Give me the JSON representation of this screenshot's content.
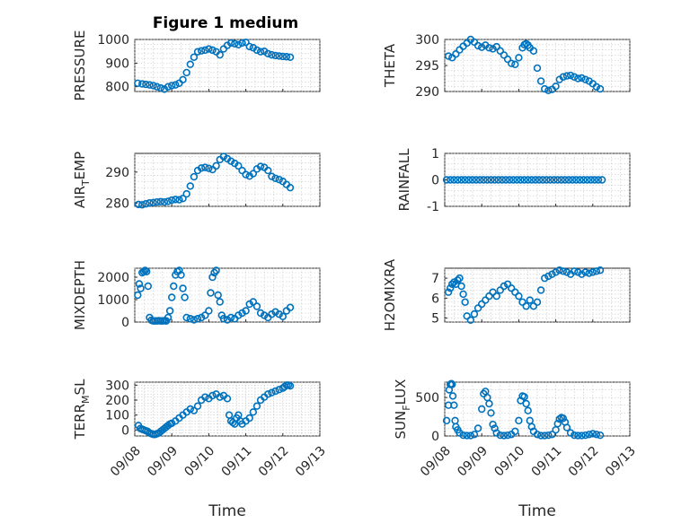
{
  "figure": {
    "title": "Figure 1 medium"
  },
  "colors": {
    "marker": "#0072BD"
  },
  "chart_data": [
    {
      "id": "pressure",
      "type": "scatter",
      "title": "Figure 1 medium",
      "ylabel": "PRESSURE",
      "xlabel": "",
      "ylim": [
        780,
        1000
      ],
      "yticks": [
        800,
        900,
        1000
      ],
      "xlim_days": [
        8,
        13
      ],
      "xtick_labels": [],
      "grid": true,
      "series": [
        {
          "x_days": [
            8.08,
            8.2,
            8.3,
            8.4,
            8.5,
            8.6,
            8.7,
            8.8,
            8.9,
            9.0,
            9.1,
            9.2,
            9.3,
            9.4,
            9.5,
            9.6,
            9.7,
            9.8,
            9.9,
            10.0,
            10.1,
            10.2,
            10.3,
            10.4,
            10.5,
            10.6,
            10.7,
            10.8,
            10.9,
            11.0,
            11.1,
            11.2,
            11.3,
            11.4,
            11.5,
            11.6,
            11.7,
            11.8,
            11.9,
            12.0,
            12.1,
            12.2
          ],
          "y": [
            815,
            812,
            810,
            808,
            805,
            800,
            795,
            790,
            800,
            805,
            808,
            815,
            830,
            860,
            895,
            925,
            948,
            952,
            955,
            960,
            955,
            948,
            935,
            960,
            975,
            985,
            982,
            978,
            985,
            988,
            970,
            965,
            955,
            948,
            950,
            940,
            935,
            932,
            930,
            928,
            927,
            925
          ]
        }
      ]
    },
    {
      "id": "theta",
      "type": "scatter",
      "ylabel": "THETA",
      "xlabel": "",
      "ylim": [
        290,
        300
      ],
      "yticks": [
        290,
        295,
        300
      ],
      "xlim_days": [
        8,
        13
      ],
      "xtick_labels": [],
      "grid": true,
      "series": [
        {
          "x_days": [
            8.1,
            8.2,
            8.3,
            8.4,
            8.5,
            8.6,
            8.7,
            8.8,
            8.9,
            9.0,
            9.1,
            9.2,
            9.3,
            9.4,
            9.5,
            9.6,
            9.7,
            9.8,
            9.9,
            10.0,
            10.1,
            10.15,
            10.2,
            10.25,
            10.3,
            10.4,
            10.5,
            10.6,
            10.7,
            10.8,
            10.9,
            11.0,
            11.1,
            11.2,
            11.3,
            11.4,
            11.5,
            11.6,
            11.7,
            11.8,
            11.9,
            12.0,
            12.1,
            12.2
          ],
          "y": [
            296.8,
            296.5,
            297.2,
            298,
            298.7,
            299.3,
            300,
            299.5,
            298.8,
            298.5,
            298.9,
            298.4,
            298.2,
            298.6,
            297.8,
            297,
            296.2,
            295.4,
            295.2,
            296.5,
            298.4,
            299,
            299.2,
            298.9,
            298.4,
            297.8,
            294.5,
            292,
            290.5,
            290.2,
            290.4,
            291,
            292.3,
            292.8,
            293,
            293.1,
            292.8,
            292.5,
            292.6,
            292.3,
            292,
            291.5,
            290.9,
            290.5
          ]
        }
      ]
    },
    {
      "id": "air_temp",
      "type": "scatter",
      "ylabel": "AIR_TEMP",
      "xlabel": "",
      "ylim": [
        279,
        296
      ],
      "yticks": [
        280,
        290
      ],
      "xlim_days": [
        8,
        13
      ],
      "xtick_labels": [],
      "grid": true,
      "series": [
        {
          "x_days": [
            8.1,
            8.2,
            8.3,
            8.4,
            8.5,
            8.6,
            8.7,
            8.8,
            8.9,
            9.0,
            9.1,
            9.2,
            9.3,
            9.4,
            9.5,
            9.6,
            9.7,
            9.8,
            9.9,
            10.0,
            10.1,
            10.2,
            10.3,
            10.4,
            10.5,
            10.6,
            10.7,
            10.8,
            10.9,
            11.0,
            11.1,
            11.2,
            11.3,
            11.4,
            11.5,
            11.6,
            11.7,
            11.8,
            11.9,
            12.0,
            12.1,
            12.2
          ],
          "y": [
            279.6,
            279.5,
            279.8,
            280.1,
            280.2,
            280.4,
            280.5,
            280.4,
            280.6,
            281,
            281.2,
            281.1,
            281.5,
            283,
            285.5,
            288.5,
            290.5,
            291.3,
            291.5,
            291.2,
            290.8,
            292,
            294,
            295,
            294.3,
            293.5,
            292.8,
            292,
            290.5,
            289.2,
            288.7,
            289.5,
            291,
            291.8,
            291.5,
            290.5,
            288.6,
            288,
            287.6,
            287,
            286,
            285
          ]
        }
      ]
    },
    {
      "id": "rainfall",
      "type": "scatter",
      "ylabel": "RAINFALL",
      "xlabel": "",
      "ylim": [
        -1,
        1
      ],
      "yticks": [
        -1,
        0,
        1
      ],
      "xlim_days": [
        8,
        13
      ],
      "xtick_labels": [],
      "grid": true,
      "series": [
        {
          "x_days": [
            8.05,
            8.15,
            8.25,
            8.35,
            8.45,
            8.55,
            8.65,
            8.75,
            8.85,
            8.95,
            9.05,
            9.15,
            9.25,
            9.35,
            9.45,
            9.55,
            9.65,
            9.75,
            9.85,
            9.95,
            10.05,
            10.15,
            10.25,
            10.35,
            10.45,
            10.55,
            10.65,
            10.75,
            10.85,
            10.95,
            11.05,
            11.15,
            11.25,
            11.35,
            11.45,
            11.55,
            11.65,
            11.75,
            11.85,
            11.95,
            12.05,
            12.15,
            12.25
          ],
          "y": [
            0,
            0,
            0,
            0,
            0,
            0,
            0,
            0,
            0,
            0,
            0,
            0,
            0,
            0,
            0,
            0,
            0,
            0,
            0,
            0,
            0,
            0,
            0,
            0,
            0,
            0,
            0,
            0,
            0,
            0,
            0,
            0,
            0,
            0,
            0,
            0,
            0,
            0,
            0,
            0,
            0,
            0,
            0
          ]
        }
      ]
    },
    {
      "id": "mixdepth",
      "type": "scatter",
      "ylabel": "MIXDEPTH",
      "xlabel": "",
      "ylim": [
        0,
        2400
      ],
      "yticks": [
        0,
        1000,
        2000
      ],
      "xlim_days": [
        8,
        13
      ],
      "xtick_labels": [],
      "grid": true,
      "series": [
        {
          "x_days": [
            8.08,
            8.12,
            8.16,
            8.2,
            8.24,
            8.28,
            8.32,
            8.36,
            8.4,
            8.45,
            8.5,
            8.55,
            8.6,
            8.65,
            8.7,
            8.75,
            8.8,
            8.85,
            8.9,
            8.95,
            9.0,
            9.05,
            9.1,
            9.15,
            9.2,
            9.25,
            9.3,
            9.35,
            9.4,
            9.5,
            9.6,
            9.7,
            9.8,
            9.9,
            10.0,
            10.05,
            10.1,
            10.15,
            10.2,
            10.25,
            10.3,
            10.35,
            10.4,
            10.5,
            10.6,
            10.7,
            10.8,
            10.9,
            11.0,
            11.1,
            11.2,
            11.3,
            11.4,
            11.5,
            11.6,
            11.7,
            11.8,
            11.9,
            12.0,
            12.1,
            12.2
          ],
          "y": [
            1200,
            1700,
            1500,
            2200,
            2250,
            2300,
            2250,
            1600,
            200,
            80,
            50,
            50,
            50,
            60,
            50,
            50,
            60,
            50,
            200,
            500,
            1100,
            1600,
            2100,
            2250,
            2300,
            2100,
            1500,
            1100,
            200,
            150,
            100,
            150,
            200,
            300,
            500,
            1300,
            2000,
            2200,
            2300,
            1200,
            900,
            300,
            150,
            100,
            200,
            150,
            300,
            400,
            500,
            800,
            900,
            700,
            400,
            300,
            200,
            350,
            450,
            350,
            250,
            500,
            650
          ]
        }
      ]
    },
    {
      "id": "h2omixra",
      "type": "scatter",
      "ylabel": "H2OMIXRA",
      "xlabel": "",
      "ylim": [
        4.8,
        7.5
      ],
      "yticks": [
        5,
        6,
        7
      ],
      "xlim_days": [
        8,
        13
      ],
      "xtick_labels": [],
      "grid": true,
      "series": [
        {
          "x_days": [
            8.1,
            8.15,
            8.2,
            8.25,
            8.3,
            8.35,
            8.4,
            8.45,
            8.5,
            8.55,
            8.6,
            8.7,
            8.8,
            8.9,
            9.0,
            9.1,
            9.2,
            9.3,
            9.4,
            9.5,
            9.6,
            9.7,
            9.8,
            9.9,
            10.0,
            10.1,
            10.2,
            10.3,
            10.4,
            10.5,
            10.6,
            10.7,
            10.8,
            10.9,
            11.0,
            11.1,
            11.2,
            11.3,
            11.4,
            11.5,
            11.6,
            11.7,
            11.8,
            11.9,
            12.0,
            12.1,
            12.2
          ],
          "y": [
            6.3,
            6.5,
            6.7,
            6.8,
            6.7,
            6.9,
            7.0,
            6.6,
            6.2,
            5.8,
            5.1,
            4.9,
            5.2,
            5.5,
            5.7,
            5.9,
            6.1,
            6.3,
            6.1,
            6.4,
            6.6,
            6.7,
            6.5,
            6.3,
            6.1,
            5.8,
            5.6,
            5.9,
            5.6,
            5.8,
            6.4,
            7.0,
            7.1,
            7.2,
            7.3,
            7.4,
            7.35,
            7.3,
            7.2,
            7.35,
            7.3,
            7.2,
            7.3,
            7.25,
            7.3,
            7.35,
            7.4
          ]
        }
      ]
    },
    {
      "id": "terr_msl",
      "type": "scatter",
      "ylabel": "TERR_MSL",
      "xlabel": "Time",
      "ylim": [
        -40,
        320
      ],
      "yticks": [
        0,
        100,
        200,
        300
      ],
      "xlim_days": [
        8,
        13
      ],
      "xtick_labels": [
        "09/08",
        "09/09",
        "09/10",
        "09/11",
        "09/12",
        "09/13"
      ],
      "grid": true,
      "series": [
        {
          "x_days": [
            8.1,
            8.15,
            8.2,
            8.25,
            8.3,
            8.35,
            8.4,
            8.45,
            8.5,
            8.55,
            8.6,
            8.65,
            8.7,
            8.75,
            8.8,
            8.85,
            8.9,
            8.95,
            9.0,
            9.1,
            9.2,
            9.3,
            9.4,
            9.5,
            9.6,
            9.7,
            9.8,
            9.9,
            10.0,
            10.1,
            10.2,
            10.3,
            10.4,
            10.5,
            10.55,
            10.6,
            10.65,
            10.7,
            10.75,
            10.8,
            10.85,
            10.9,
            11.0,
            11.1,
            11.2,
            11.3,
            11.4,
            11.5,
            11.6,
            11.7,
            11.8,
            11.9,
            12.0,
            12.05,
            12.1,
            12.15,
            12.2
          ],
          "y": [
            30,
            10,
            5,
            0,
            -5,
            -10,
            -20,
            -25,
            -30,
            -30,
            -25,
            -20,
            -10,
            0,
            10,
            20,
            30,
            40,
            45,
            60,
            80,
            100,
            120,
            140,
            130,
            160,
            200,
            220,
            210,
            230,
            240,
            220,
            230,
            210,
            100,
            60,
            50,
            40,
            80,
            100,
            60,
            40,
            60,
            80,
            120,
            160,
            200,
            220,
            240,
            250,
            260,
            270,
            280,
            290,
            300,
            300,
            295
          ]
        }
      ]
    },
    {
      "id": "sun_flux",
      "type": "scatter",
      "ylabel": "SUN_FLUX",
      "xlabel": "Time",
      "ylim": [
        0,
        700
      ],
      "yticks": [
        0,
        500
      ],
      "xlim_days": [
        8,
        13
      ],
      "xtick_labels": [
        "09/08",
        "09/09",
        "09/10",
        "09/11",
        "09/12",
        "09/13"
      ],
      "grid": true,
      "series": [
        {
          "x_days": [
            8.05,
            8.1,
            8.12,
            8.15,
            8.18,
            8.2,
            8.22,
            8.25,
            8.28,
            8.3,
            8.35,
            8.4,
            8.5,
            8.6,
            8.7,
            8.8,
            8.9,
            9.0,
            9.05,
            9.1,
            9.15,
            9.2,
            9.25,
            9.3,
            9.35,
            9.4,
            9.5,
            9.6,
            9.7,
            9.8,
            9.9,
            10.0,
            10.05,
            10.1,
            10.15,
            10.2,
            10.25,
            10.3,
            10.35,
            10.4,
            10.5,
            10.6,
            10.7,
            10.8,
            10.9,
            11.0,
            11.05,
            11.1,
            11.15,
            11.2,
            11.25,
            11.3,
            11.4,
            11.5,
            11.6,
            11.7,
            11.8,
            11.9,
            12.0,
            12.1,
            12.2
          ],
          "y": [
            200,
            400,
            600,
            670,
            680,
            670,
            520,
            400,
            200,
            120,
            80,
            40,
            10,
            5,
            5,
            20,
            100,
            350,
            550,
            580,
            500,
            420,
            300,
            150,
            100,
            40,
            10,
            5,
            10,
            20,
            60,
            200,
            460,
            520,
            510,
            420,
            330,
            200,
            120,
            60,
            20,
            5,
            5,
            10,
            20,
            80,
            160,
            220,
            240,
            230,
            180,
            110,
            40,
            10,
            5,
            5,
            10,
            20,
            30,
            20,
            10
          ]
        }
      ]
    }
  ]
}
